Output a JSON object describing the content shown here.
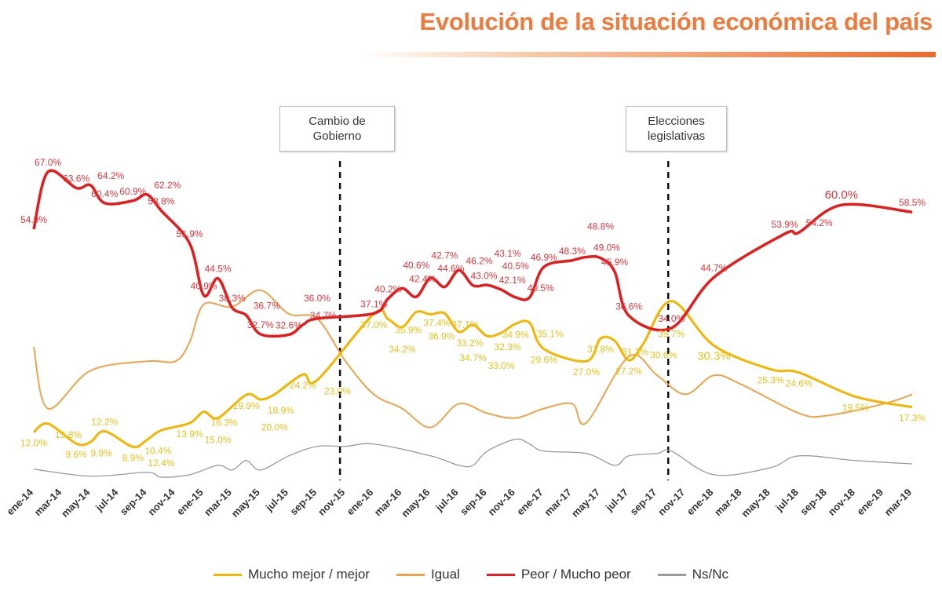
{
  "title": "Evolución de la situación económica del país",
  "chart_data": {
    "type": "line",
    "title": "Evolución de la situación económica del país",
    "xlabel": "",
    "ylabel": "",
    "ylim": [
      0,
      70
    ],
    "grid": false,
    "legend": "bottom",
    "x_ticks": [
      "ene-14",
      "mar-14",
      "may-14",
      "jul-14",
      "sep-14",
      "nov-14",
      "ene-15",
      "mar-15",
      "may-15",
      "jul-15",
      "sep-15",
      "nov-15",
      "ene-16",
      "mar-16",
      "may-16",
      "jul-16",
      "sep-16",
      "nov-16",
      "ene-17",
      "mar-17",
      "may-17",
      "jul-17",
      "sep-17",
      "nov-17",
      "ene-18",
      "mar-18",
      "may-18",
      "jul-18",
      "sep-18",
      "nov-18",
      "ene-19",
      "mar-19"
    ],
    "annotations": [
      {
        "text": "Cambio de Gobierno",
        "x": "nov-15"
      },
      {
        "text": "Elecciones legislativas",
        "x": "oct-17"
      }
    ],
    "series": [
      {
        "name": "Mucho mejor / mejor",
        "color": "#f5b400",
        "labeled": true,
        "points": [
          [
            "ene-14",
            12.0
          ],
          [
            "feb-14",
            13.8
          ],
          [
            "abr-14",
            9.6
          ],
          [
            "may-14",
            9.9
          ],
          [
            "jun-14",
            12.2
          ],
          [
            "ago-14",
            8.9
          ],
          [
            "sep-14",
            10.4
          ],
          [
            "oct-14",
            12.4
          ],
          [
            "dic-14",
            13.9
          ],
          [
            "ene-15",
            16.3
          ],
          [
            "feb-15",
            15.0
          ],
          [
            "abr-15",
            19.9
          ],
          [
            "may-15",
            18.9
          ],
          [
            "jun-15",
            20.0
          ],
          [
            "ago-15",
            24.2
          ],
          [
            "sep-15",
            23.0
          ],
          [
            "ene-16",
            37.0
          ],
          [
            "feb-16",
            35.9
          ],
          [
            "mar-16",
            34.2
          ],
          [
            "abr-16",
            37.4
          ],
          [
            "may-16",
            36.9
          ],
          [
            "jun-16",
            37.1
          ],
          [
            "jul-16",
            33.2
          ],
          [
            "ago-16",
            34.7
          ],
          [
            "sep-16",
            32.3
          ],
          [
            "oct-16",
            33.0
          ],
          [
            "nov-16",
            34.9
          ],
          [
            "dic-16",
            35.1
          ],
          [
            "ene-17",
            29.6
          ],
          [
            "abr-17",
            27.0
          ],
          [
            "may-17",
            31.8
          ],
          [
            "jun-17",
            31.3
          ],
          [
            "jul-17",
            27.2
          ],
          [
            "ago-17",
            30.6
          ],
          [
            "oct-17",
            39.7
          ],
          [
            "ene-18",
            30.3
          ],
          [
            "may-18",
            25.3
          ],
          [
            "jul-18",
            24.6
          ],
          [
            "nov-18",
            19.5
          ],
          [
            "mar-19",
            17.3
          ]
        ]
      },
      {
        "name": "Igual",
        "color": "#f0a24a",
        "labeled": false,
        "points": [
          [
            "ene-14",
            30
          ],
          [
            "feb-14",
            17
          ],
          [
            "may-14",
            25
          ],
          [
            "sep-14",
            27
          ],
          [
            "nov-14",
            27
          ],
          [
            "dic-14",
            31
          ],
          [
            "ene-15",
            39
          ],
          [
            "mar-15",
            38.5
          ],
          [
            "may-15",
            42
          ],
          [
            "jul-15",
            37
          ],
          [
            "sep-15",
            36
          ],
          [
            "nov-15",
            27
          ],
          [
            "ene-16",
            20
          ],
          [
            "mar-16",
            17
          ],
          [
            "may-16",
            13
          ],
          [
            "jul-16",
            18
          ],
          [
            "sep-16",
            16
          ],
          [
            "nov-16",
            15
          ],
          [
            "ene-17",
            17
          ],
          [
            "mar-17",
            18
          ],
          [
            "abr-17",
            14
          ],
          [
            "jul-17",
            28
          ],
          [
            "sep-17",
            24
          ],
          [
            "nov-17",
            20
          ],
          [
            "ene-18",
            24
          ],
          [
            "mar-18",
            22
          ],
          [
            "jul-18",
            16
          ],
          [
            "sep-18",
            15.5
          ],
          [
            "ene-19",
            18
          ],
          [
            "mar-19",
            20
          ]
        ]
      },
      {
        "name": "Peor / Mucho peor",
        "color": "#e41c1c",
        "labeled": true,
        "points": [
          [
            "ene-14",
            54.9
          ],
          [
            "feb-14",
            67.0
          ],
          [
            "abr-14",
            63.6
          ],
          [
            "may-14",
            64.2
          ],
          [
            "jun-14",
            60.4
          ],
          [
            "ago-14",
            60.9
          ],
          [
            "sep-14",
            62.2
          ],
          [
            "oct-14",
            58.8
          ],
          [
            "dic-14",
            51.9
          ],
          [
            "ene-15",
            40.9
          ],
          [
            "feb-15",
            44.5
          ],
          [
            "mar-15",
            38.3
          ],
          [
            "abr-15",
            36.7
          ],
          [
            "may-15",
            32.7
          ],
          [
            "jul-15",
            32.6
          ],
          [
            "ago-15",
            34.7
          ],
          [
            "sep-15",
            36.0
          ],
          [
            "ene-16",
            37.1
          ],
          [
            "feb-16",
            40.2
          ],
          [
            "mar-16",
            42.4
          ],
          [
            "abr-16",
            40.6
          ],
          [
            "may-16",
            44.6
          ],
          [
            "jun-16",
            42.7
          ],
          [
            "jul-16",
            46.2
          ],
          [
            "ago-16",
            43.0
          ],
          [
            "sep-16",
            43.1
          ],
          [
            "oct-16",
            42.1
          ],
          [
            "nov-16",
            40.5
          ],
          [
            "dic-16",
            40.5
          ],
          [
            "ene-17",
            46.9
          ],
          [
            "mar-17",
            48.3
          ],
          [
            "abr-17",
            49.0
          ],
          [
            "may-17",
            48.8
          ],
          [
            "jun-17",
            45.9
          ],
          [
            "jul-17",
            36.6
          ],
          [
            "oct-17",
            34.0
          ],
          [
            "ene-18",
            44.7
          ],
          [
            "jun-18",
            53.9
          ],
          [
            "jul-18",
            54.2
          ],
          [
            "oct-18",
            60.0
          ],
          [
            "mar-19",
            58.5
          ]
        ]
      },
      {
        "name": "Ns/Nc",
        "color": "#999999",
        "labeled": false,
        "points": [
          [
            "ene-14",
            4.2
          ],
          [
            "may-14",
            2.7
          ],
          [
            "sep-14",
            3.5
          ],
          [
            "oct-14",
            2.5
          ],
          [
            "dic-14",
            3.0
          ],
          [
            "feb-15",
            5.0
          ],
          [
            "mar-15",
            4.0
          ],
          [
            "abr-15",
            6.0
          ],
          [
            "may-15",
            4.0
          ],
          [
            "jul-15",
            7.0
          ],
          [
            "sep-15",
            9.0
          ],
          [
            "nov-15",
            9.0
          ],
          [
            "ene-16",
            9.5
          ],
          [
            "may-16",
            7.0
          ],
          [
            "jul-16",
            5.0
          ],
          [
            "ago-16",
            5.0
          ],
          [
            "sep-16",
            8.0
          ],
          [
            "nov-16",
            10.5
          ],
          [
            "dic-16",
            9.5
          ],
          [
            "ene-17",
            8.0
          ],
          [
            "abr-17",
            7.5
          ],
          [
            "jun-17",
            5.0
          ],
          [
            "jul-17",
            7.0
          ],
          [
            "sep-17",
            7.5
          ],
          [
            "oct-17",
            8.0
          ],
          [
            "ene-18",
            3.0
          ],
          [
            "may-18",
            4.5
          ],
          [
            "jul-18",
            7.0
          ],
          [
            "nov-18",
            6.0
          ],
          [
            "mar-19",
            5.3
          ]
        ]
      }
    ]
  }
}
